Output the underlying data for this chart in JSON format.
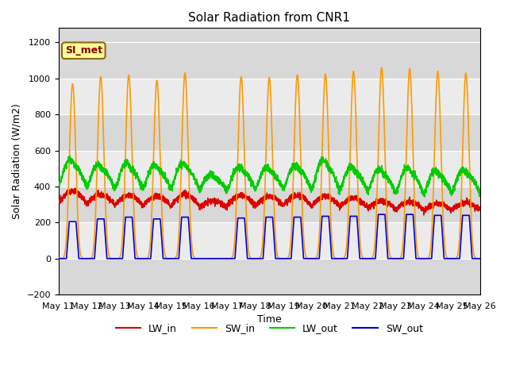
{
  "title": "Solar Radiation from CNR1",
  "xlabel": "Time",
  "ylabel": "Solar Radiation (W/m2)",
  "ylim": [
    -200,
    1280
  ],
  "yticks": [
    -200,
    0,
    200,
    400,
    600,
    800,
    1000,
    1200
  ],
  "annotation_text": "SI_met",
  "legend_labels": [
    "LW_in",
    "SW_in",
    "LW_out",
    "SW_out"
  ],
  "line_colors": [
    "#dd0000",
    "#ff9900",
    "#00cc00",
    "#0000dd"
  ],
  "background_color": "#ffffff",
  "plot_bg_color": "#d8d8d8",
  "stripe_color": "#ebebeb",
  "date_labels": [
    "May 11",
    "May 12",
    "May 13",
    "May 14",
    "May 15",
    "May 16",
    "May 17",
    "May 18",
    "May 19",
    "May 20",
    "May 21",
    "May 22",
    "May 23",
    "May 24",
    "May 25",
    "May 26"
  ],
  "n_days": 15,
  "sw_in_peaks": [
    970,
    1010,
    1020,
    990,
    1030,
    0,
    1010,
    1005,
    1020,
    1025,
    1040,
    1060,
    1055,
    1040,
    1030
  ],
  "sw_out_peaks": [
    205,
    220,
    230,
    220,
    230,
    0,
    225,
    230,
    230,
    235,
    235,
    245,
    245,
    240,
    240
  ],
  "lw_in_base": [
    310,
    300,
    295,
    290,
    295,
    280,
    295,
    295,
    295,
    290,
    285,
    275,
    270,
    265,
    270
  ],
  "lw_in_day_amp": [
    65,
    55,
    55,
    55,
    60,
    40,
    55,
    50,
    55,
    55,
    50,
    45,
    45,
    40,
    40
  ],
  "lw_out_base": [
    400,
    390,
    385,
    385,
    390,
    375,
    385,
    385,
    385,
    380,
    375,
    365,
    360,
    360,
    365
  ],
  "lw_out_day_amp": [
    145,
    130,
    140,
    130,
    135,
    90,
    120,
    115,
    130,
    160,
    130,
    130,
    140,
    125,
    125
  ]
}
